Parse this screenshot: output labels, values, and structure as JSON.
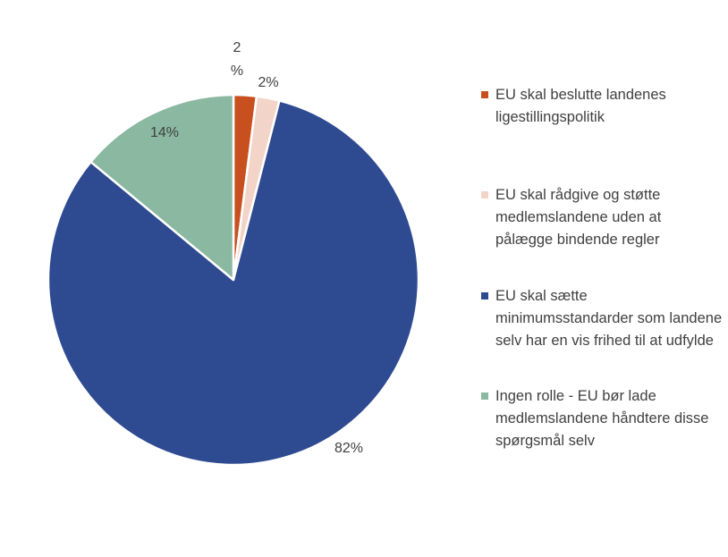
{
  "chart_data": {
    "type": "pie",
    "title": "",
    "slices": [
      {
        "label": "EU skal beslutte landenes ligestillingspolitik",
        "value": 2,
        "display": "2%",
        "color": "#C8501F"
      },
      {
        "label": "EU skal rådgive og støtte medlemslandene uden at pålægge bindende regler",
        "value": 2,
        "display": "2%",
        "color": "#F2D5C8"
      },
      {
        "label": "EU skal sætte minimumsstandarder som landene selv har en vis frihed til at udfylde",
        "value": 82,
        "display": "82%",
        "color": "#2E4A91"
      },
      {
        "label": "Ingen rolle - EU bør lade medlemslandene håndtere disse spørgsmål selv",
        "value": 14,
        "display": "14%",
        "color": "#8AB8A0"
      }
    ],
    "legend_position": "right",
    "start_angle": "top",
    "direction": "clockwise"
  }
}
